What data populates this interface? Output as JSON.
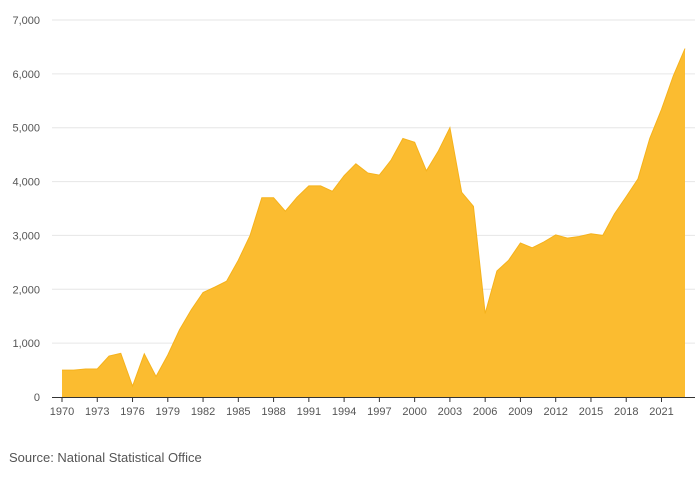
{
  "chart_data": {
    "type": "area",
    "title": "",
    "xlabel": "",
    "ylabel": "",
    "x": [
      1970,
      1971,
      1972,
      1973,
      1974,
      1975,
      1976,
      1977,
      1978,
      1979,
      1980,
      1981,
      1982,
      1983,
      1984,
      1985,
      1986,
      1987,
      1988,
      1989,
      1990,
      1991,
      1992,
      1993,
      1994,
      1995,
      1996,
      1997,
      1998,
      1999,
      2000,
      2001,
      2002,
      2003,
      2004,
      2005,
      2006,
      2007,
      2008,
      2009,
      2010,
      2011,
      2012,
      2013,
      2014,
      2015,
      2016,
      2017,
      2018,
      2019,
      2020,
      2021,
      2022,
      2023
    ],
    "series": [
      {
        "values": [
          500,
          500,
          520,
          520,
          760,
          810,
          200,
          800,
          380,
          780,
          1250,
          1620,
          1940,
          2040,
          2150,
          2540,
          3000,
          3700,
          3700,
          3450,
          3710,
          3920,
          3920,
          3820,
          4110,
          4330,
          4160,
          4120,
          4400,
          4800,
          4730,
          4200,
          4560,
          5000,
          3800,
          3540,
          1550,
          2340,
          2540,
          2860,
          2770,
          2880,
          3010,
          2950,
          2980,
          3030,
          3000,
          3400,
          3720,
          4050,
          4800,
          5340,
          5960,
          6470
        ]
      }
    ],
    "x_ticks": [
      "1970",
      "1973",
      "1976",
      "1979",
      "1982",
      "1985",
      "1988",
      "1991",
      "1994",
      "1997",
      "2000",
      "2003",
      "2006",
      "2009",
      "2012",
      "2015",
      "2018",
      "2021"
    ],
    "y_ticks": [
      "0",
      "1,000",
      "2,000",
      "3,000",
      "4,000",
      "5,000",
      "6,000",
      "7,000"
    ],
    "ylim": [
      0,
      7000
    ],
    "xlim": [
      1970,
      2023
    ],
    "grid": "horizontal",
    "fill_color": "#fbbc30",
    "line_color": "#f5b21c",
    "axis_color": "#333333",
    "grid_color": "#e6e6e6"
  },
  "source_note": "Source: National Statistical Office"
}
